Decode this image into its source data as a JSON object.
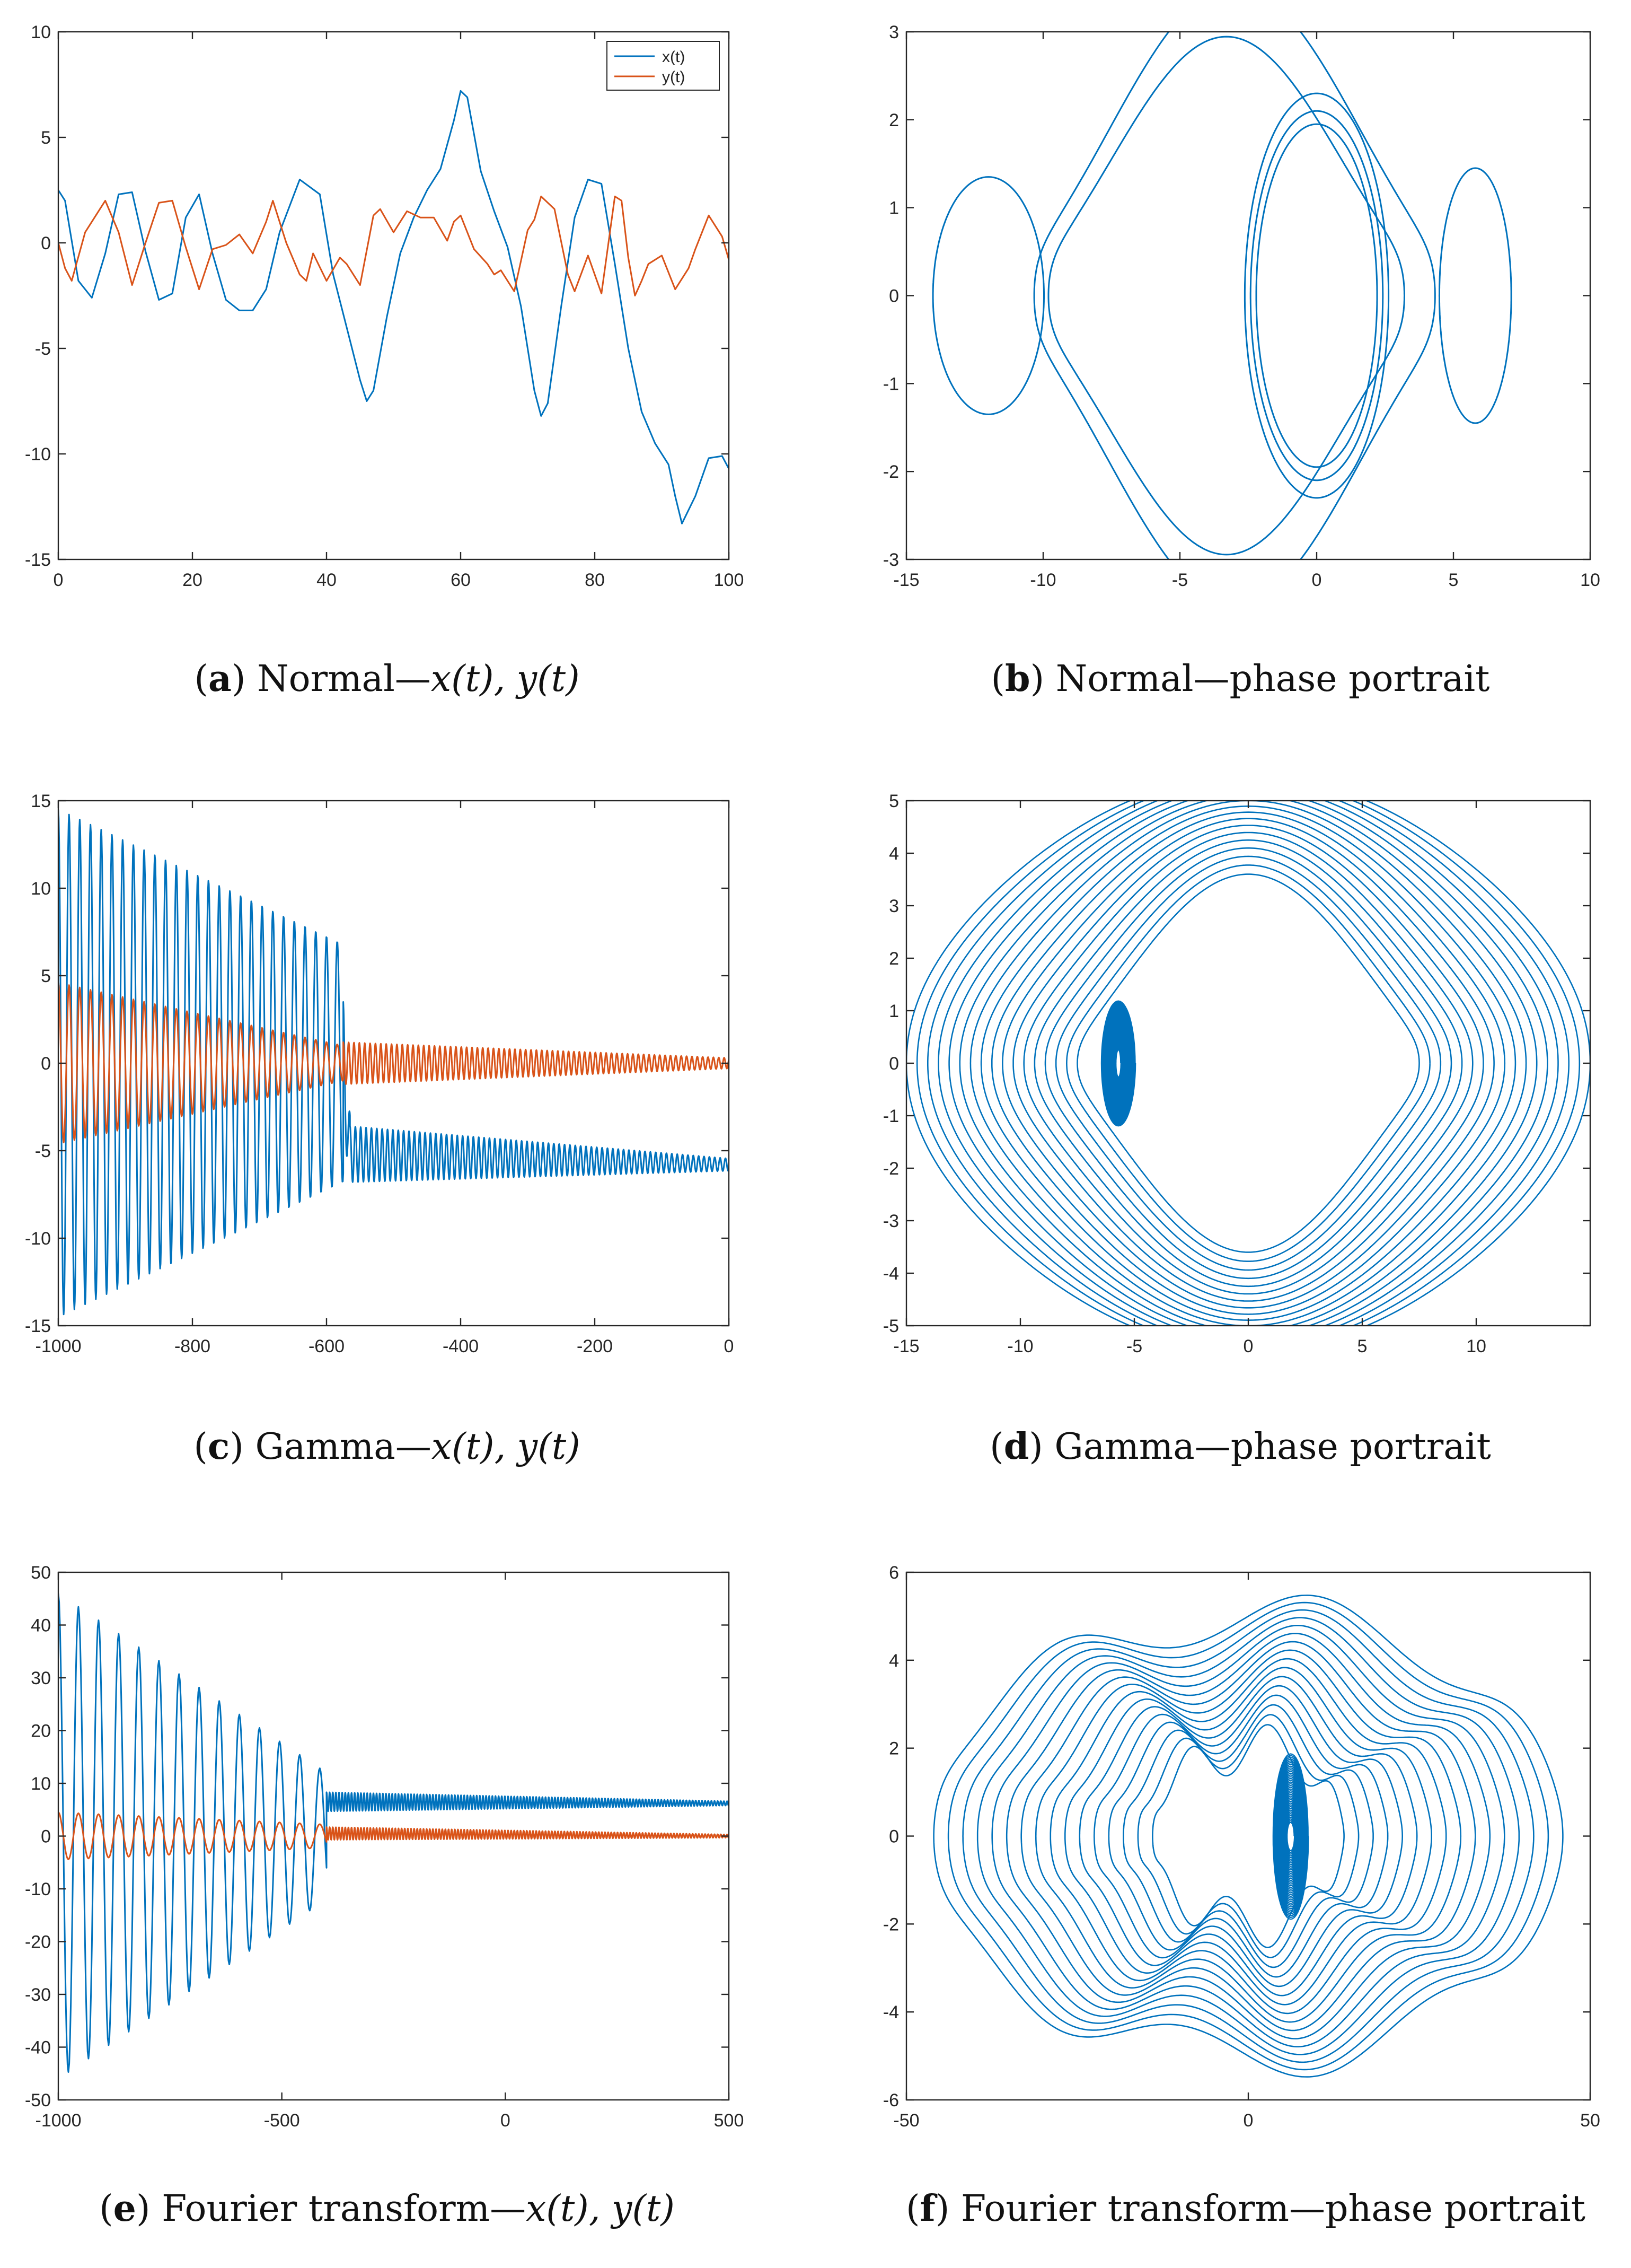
{
  "colors": {
    "x": "#0072BD",
    "y": "#D95319",
    "axis": "#262626",
    "background": "#ffffff"
  },
  "chart_data": [
    {
      "id": "a",
      "type": "line",
      "title": "",
      "xlabel": "",
      "ylabel": "",
      "xlim": [
        0,
        100
      ],
      "ylim": [
        -15,
        10
      ],
      "xticks": [
        0,
        20,
        40,
        60,
        80,
        100
      ],
      "yticks": [
        -15,
        -10,
        -5,
        0,
        5,
        10
      ],
      "grid": false,
      "legend": "top-right",
      "series": [
        {
          "name": "x(t)",
          "color": "#0072BD",
          "x": [
            0,
            1,
            3,
            5,
            7,
            9,
            11,
            13,
            15,
            17,
            19,
            21,
            23,
            25,
            27,
            29,
            31,
            33,
            36,
            39,
            41,
            43,
            45,
            46,
            47,
            49,
            51,
            53,
            55,
            57,
            59,
            60,
            61,
            63,
            65,
            67,
            69,
            71,
            72,
            73,
            75,
            77,
            79,
            81,
            83,
            85,
            87,
            89,
            91,
            92,
            93,
            95,
            97,
            99,
            100
          ],
          "y": [
            2.5,
            2.0,
            -1.8,
            -2.6,
            -0.5,
            2.3,
            2.4,
            -0.4,
            -2.7,
            -2.4,
            1.2,
            2.3,
            -0.5,
            -2.7,
            -3.2,
            -3.2,
            -2.2,
            0.5,
            3.0,
            2.3,
            -1.5,
            -4.0,
            -6.5,
            -7.5,
            -7.0,
            -3.5,
            -0.5,
            1.2,
            2.5,
            3.5,
            5.8,
            7.2,
            6.9,
            3.4,
            1.5,
            -0.2,
            -3.0,
            -7.0,
            -8.2,
            -7.6,
            -3.0,
            1.2,
            3.0,
            2.8,
            -1.0,
            -5.0,
            -8.0,
            -9.5,
            -10.5,
            -12.0,
            -13.3,
            -12.0,
            -10.2,
            -10.1,
            -10.7
          ]
        },
        {
          "name": "y(t)",
          "color": "#D95319",
          "x": [
            0,
            1,
            2,
            4,
            6,
            7,
            9,
            11,
            13,
            15,
            17,
            19,
            21,
            23,
            25,
            27,
            29,
            31,
            32,
            34,
            36,
            37,
            38,
            40,
            42,
            43,
            45,
            47,
            48,
            50,
            52,
            54,
            56,
            58,
            59,
            60,
            62,
            64,
            65,
            66,
            68,
            70,
            71,
            72,
            74,
            76,
            77,
            79,
            81,
            83,
            84,
            85,
            86,
            87,
            88,
            90,
            92,
            94,
            95,
            97,
            99,
            100
          ],
          "y": [
            0,
            -1.2,
            -1.8,
            0.5,
            1.5,
            2.0,
            0.5,
            -2.0,
            0.0,
            1.9,
            2.0,
            -0.2,
            -2.2,
            -0.3,
            -0.1,
            0.4,
            -0.5,
            1.0,
            2.0,
            0.0,
            -1.5,
            -1.8,
            -0.5,
            -1.8,
            -0.7,
            -1.0,
            -2.0,
            1.3,
            1.6,
            0.5,
            1.5,
            1.2,
            1.2,
            0.1,
            1.0,
            1.3,
            -0.3,
            -1.0,
            -1.5,
            -1.3,
            -2.3,
            0.6,
            1.1,
            2.2,
            1.6,
            -1.5,
            -2.3,
            -0.6,
            -2.4,
            2.2,
            2.0,
            -0.7,
            -2.5,
            -1.8,
            -1.0,
            -0.6,
            -2.2,
            -1.2,
            -0.3,
            1.3,
            0.3,
            -0.8
          ]
        }
      ]
    },
    {
      "id": "b",
      "type": "line",
      "title": "",
      "xlabel": "",
      "ylabel": "",
      "xlim": [
        -15,
        10
      ],
      "ylim": [
        -3,
        3
      ],
      "xticks": [
        -15,
        -10,
        -5,
        0,
        5,
        10
      ],
      "yticks": [
        -3,
        -2,
        -1,
        0,
        1,
        2,
        3
      ],
      "grid": false,
      "legend": "none",
      "orbits": [
        {
          "kind": "orbit",
          "cx": 0,
          "a": 2.6,
          "b": 2.3,
          "gamma": 0,
          "k": 5,
          "w": 0,
          "loops": 1,
          "seed": 1
        },
        {
          "kind": "orbit",
          "cx": 0,
          "a": 2.4,
          "b": 2.1,
          "gamma": 0,
          "k": 5,
          "w": 0,
          "loops": 1,
          "seed": 2
        },
        {
          "kind": "orbit",
          "cx": 0,
          "a": 2.2,
          "b": 1.95,
          "gamma": 0,
          "k": 5,
          "w": 0,
          "loops": 1,
          "seed": 3
        },
        {
          "kind": "orbit",
          "cx": -3.3,
          "a": 6.5,
          "b": 1.9,
          "gamma": 0,
          "k": 1,
          "w": 0.55,
          "loops": 1,
          "seed": 4
        },
        {
          "kind": "orbit",
          "cx": -3.0,
          "a": 7.2,
          "b": 2.2,
          "gamma": 0,
          "k": 1,
          "w": 0.6,
          "loops": 1,
          "seed": 5
        },
        {
          "kind": "orbit",
          "cx": -12.0,
          "a": 2.0,
          "b": 1.35,
          "gamma": 0,
          "k": 1,
          "w": 0,
          "loops": 1,
          "seed": 6
        },
        {
          "kind": "orbit",
          "cx": 5.8,
          "a": 1.3,
          "b": 1.45,
          "gamma": 0,
          "k": 1,
          "w": 0,
          "loops": 1,
          "seed": 7
        }
      ]
    },
    {
      "id": "c",
      "type": "line",
      "title": "",
      "xlabel": "",
      "ylabel": "",
      "xlim": [
        -1000,
        0
      ],
      "ylim": [
        -15,
        15
      ],
      "xticks": [
        -1000,
        -800,
        -600,
        -400,
        -200,
        0
      ],
      "yticks": [
        -15,
        -10,
        -5,
        0,
        5,
        10,
        15
      ],
      "grid": false,
      "legend": "none",
      "series": [
        {
          "name": "x(t)",
          "color": "#0072BD",
          "osc": {
            "segments": [
              {
                "t0": -1000,
                "t1": -575,
                "period": 16,
                "amp0": 14.5,
                "amp1": 6.8,
                "center0": 0,
                "center1": 0
              },
              {
                "t0": -575,
                "t1": -565,
                "period": 10,
                "amp0": 3.5,
                "amp1": 2.0,
                "center0": 0,
                "center1": -5.0
              },
              {
                "t0": -565,
                "t1": 0,
                "period": 8,
                "amp0": 1.6,
                "amp1": 0.35,
                "center0": -5.2,
                "center1": -5.8
              }
            ]
          }
        },
        {
          "name": "y(t)",
          "color": "#D95319",
          "osc": {
            "segments": [
              {
                "t0": -1000,
                "t1": -575,
                "period": 16,
                "amp0": 4.6,
                "amp1": 1.0,
                "center0": 0,
                "center1": 0
              },
              {
                "t0": -575,
                "t1": 0,
                "period": 8,
                "amp0": 1.2,
                "amp1": 0.3,
                "center0": 0,
                "center1": 0
              }
            ]
          }
        }
      ]
    },
    {
      "id": "d",
      "type": "line",
      "title": "",
      "xlabel": "",
      "ylabel": "",
      "xlim": [
        -15,
        15
      ],
      "ylim": [
        -5,
        5
      ],
      "xticks": [
        -15,
        -10,
        -5,
        0,
        5,
        10
      ],
      "yticks": [
        -5,
        -4,
        -3,
        -2,
        -1,
        0,
        1,
        2,
        3,
        4,
        5
      ],
      "grid": false,
      "legend": "none",
      "orbits": [
        {
          "kind": "family",
          "cx": 0,
          "a0": 7.5,
          "a1": 15,
          "b0": 2.4,
          "b1": 4.9,
          "w0": 0.5,
          "w1": 0.12,
          "k": 2,
          "n": 17,
          "gamma": 0.05
        },
        {
          "kind": "spiral",
          "cx": -5.7,
          "a0": 0.1,
          "a1": 0.75,
          "b0": 0.25,
          "b1": 1.2,
          "turns": 50
        }
      ]
    },
    {
      "id": "e",
      "type": "line",
      "title": "",
      "xlabel": "",
      "ylabel": "",
      "xlim": [
        -1000,
        500
      ],
      "ylim": [
        -50,
        50
      ],
      "xticks": [
        -1000,
        -500,
        0,
        500
      ],
      "yticks": [
        -50,
        -40,
        -30,
        -20,
        -10,
        0,
        10,
        20,
        30,
        40,
        50
      ],
      "grid": false,
      "legend": "none",
      "series": [
        {
          "name": "x(t)",
          "color": "#0072BD",
          "osc": {
            "segments": [
              {
                "t0": -1000,
                "t1": -400,
                "period": 45,
                "amp0": 46,
                "amp1": 12,
                "center0": 0,
                "center1": 0
              },
              {
                "t0": -400,
                "t1": 500,
                "period": 7,
                "amp0": 1.8,
                "amp1": 0.4,
                "center0": 6.5,
                "center1": 6.2
              }
            ]
          }
        },
        {
          "name": "y(t)",
          "color": "#D95319",
          "osc": {
            "segments": [
              {
                "t0": -1000,
                "t1": -400,
                "period": 45,
                "amp0": 4.5,
                "amp1": 2.2,
                "center0": 0,
                "center1": 0
              },
              {
                "t0": -400,
                "t1": 500,
                "period": 7,
                "amp0": 1.2,
                "amp1": 0.3,
                "center0": 0.5,
                "center1": 0
              }
            ]
          }
        }
      ]
    },
    {
      "id": "f",
      "type": "line",
      "title": "",
      "xlabel": "",
      "ylabel": "",
      "xlim": [
        -50,
        50
      ],
      "ylim": [
        -6,
        6
      ],
      "xticks": [
        -50,
        0,
        50
      ],
      "yticks": [
        -6,
        -4,
        -2,
        0,
        2,
        4,
        6
      ],
      "grid": false,
      "legend": "none",
      "orbits": [
        {
          "kind": "family",
          "cx": 0,
          "a0": 14,
          "a1": 46,
          "b0": 2.0,
          "b1": 5.0,
          "w0": 0.3,
          "w1": 0.12,
          "k": 7,
          "n": 16,
          "gamma": 0.01
        },
        {
          "kind": "spiral",
          "cx": 6.2,
          "a0": 0.5,
          "a1": 2.6,
          "b0": 0.3,
          "b1": 1.9,
          "turns": 40
        }
      ]
    }
  ],
  "captions": [
    {
      "label": "a",
      "text": "Normal—",
      "math": "x(t), y(t)"
    },
    {
      "label": "b",
      "text": "Normal—phase portrait",
      "math": ""
    },
    {
      "label": "c",
      "text": "Gamma—",
      "math": "x(t), y(t)"
    },
    {
      "label": "d",
      "text": "Gamma—phase portrait",
      "math": ""
    },
    {
      "label": "e",
      "text": "Fourier transform—",
      "math": "x(t), y(t)"
    },
    {
      "label": "f",
      "text": "Fourier transform—phase portrait",
      "math": ""
    }
  ]
}
